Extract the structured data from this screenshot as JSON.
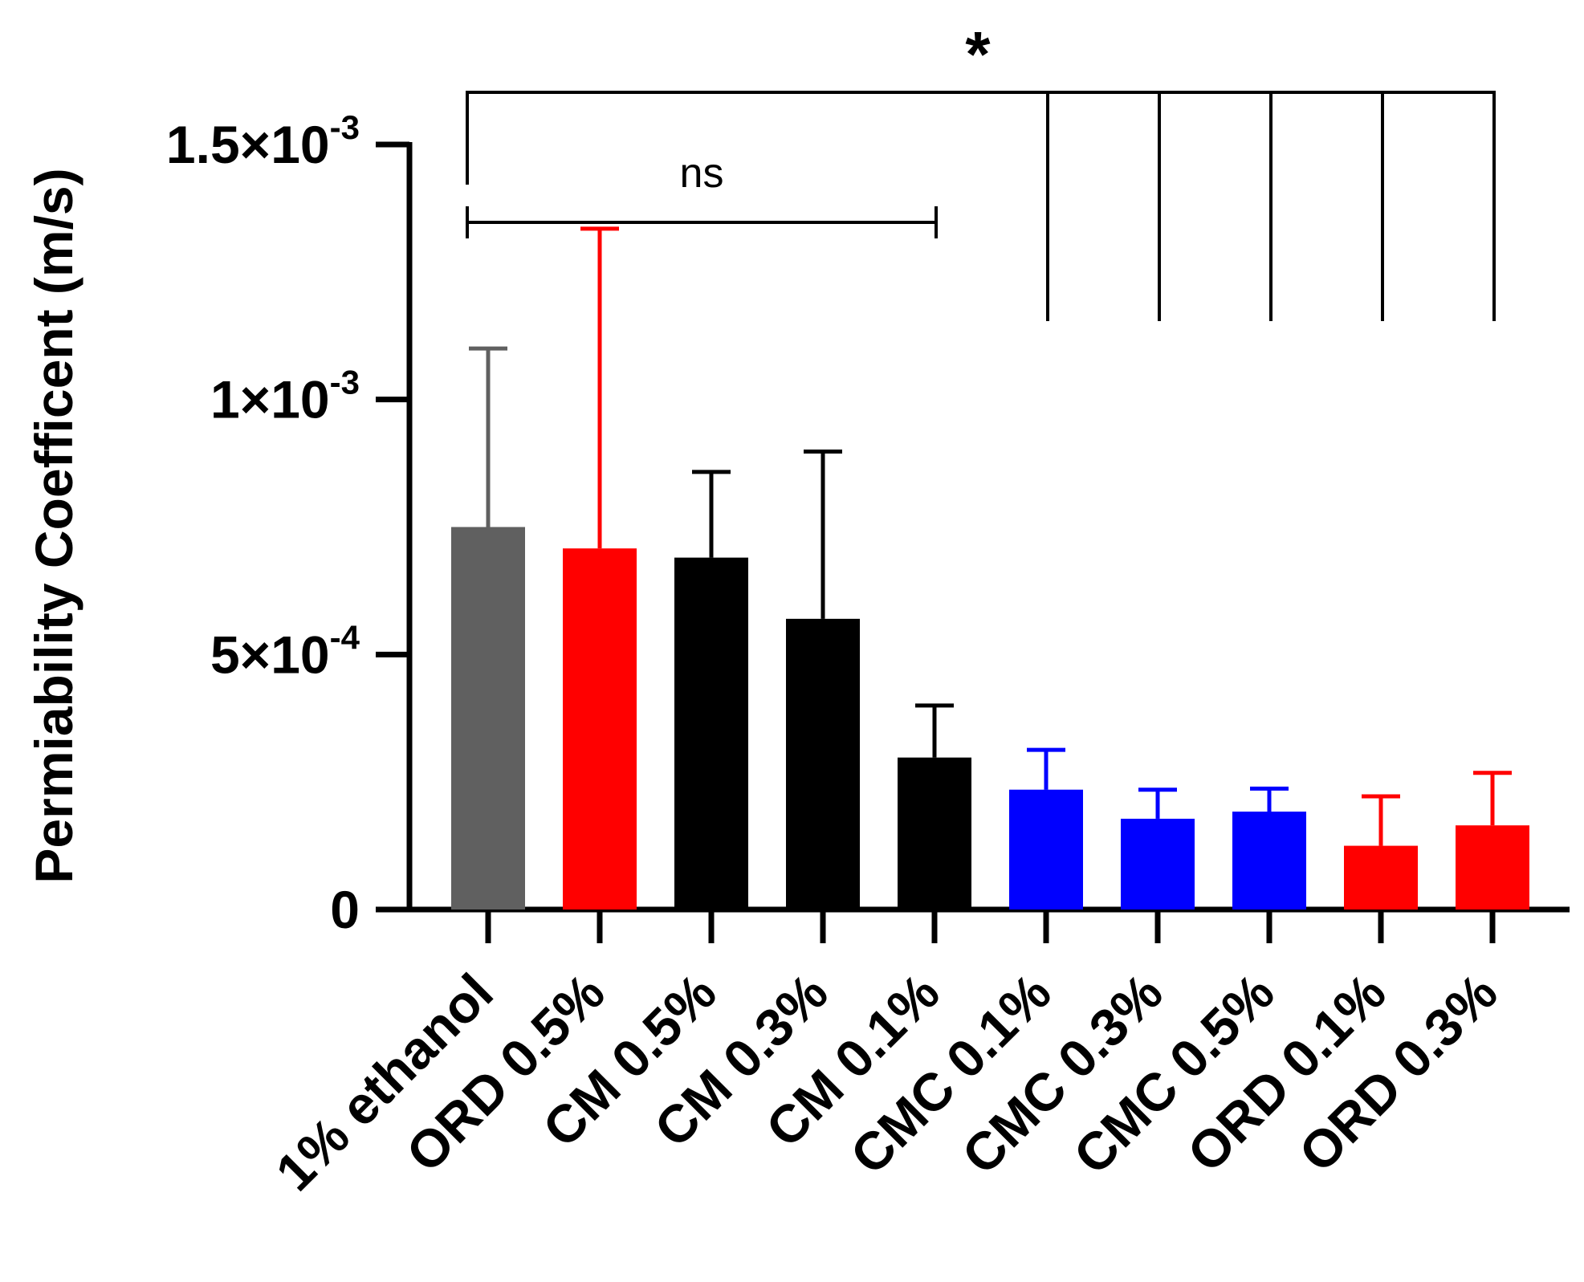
{
  "chart_data": {
    "type": "bar",
    "title": "",
    "xlabel": "",
    "ylabel": "Permiability Coefficent (m/s)",
    "ylim": [
      0,
      0.0015
    ],
    "yticks": [
      {
        "value": 0,
        "mantissa": "0",
        "exponent": ""
      },
      {
        "value": 0.0005,
        "mantissa": "5×10",
        "exponent": "-4"
      },
      {
        "value": 0.001,
        "mantissa": "1×10",
        "exponent": "-3"
      },
      {
        "value": 0.0015,
        "mantissa": "1.5×10",
        "exponent": "-3"
      }
    ],
    "categories": [
      "1% ethanol",
      "ORD 0.5%",
      "CM 0.5%",
      "CM 0.3%",
      "CM 0.1%",
      "CMC 0.1%",
      "CMC 0.3%",
      "CMC 0.5%",
      "ORD 0.1%",
      "ORD 0.3%"
    ],
    "values": [
      0.00075,
      0.000708,
      0.00069,
      0.00057,
      0.000298,
      0.000235,
      0.000178,
      0.000192,
      0.000125,
      0.000165
    ],
    "errors": [
      0.00035,
      0.000627,
      0.000168,
      0.000328,
      0.000102,
      7.8e-05,
      5.7e-05,
      4.5e-05,
      9.7e-05,
      0.000103
    ],
    "colors": [
      "#606060",
      "#ff0000",
      "#000000",
      "#000000",
      "#000000",
      "#0000ff",
      "#0000ff",
      "#0000ff",
      "#ff0000",
      "#ff0000"
    ],
    "annotations": {
      "ns": {
        "label": "ns",
        "from": 0,
        "to": 4
      },
      "star": {
        "label": "*",
        "from": 0,
        "to": [
          5,
          6,
          7,
          8,
          9
        ]
      }
    }
  }
}
